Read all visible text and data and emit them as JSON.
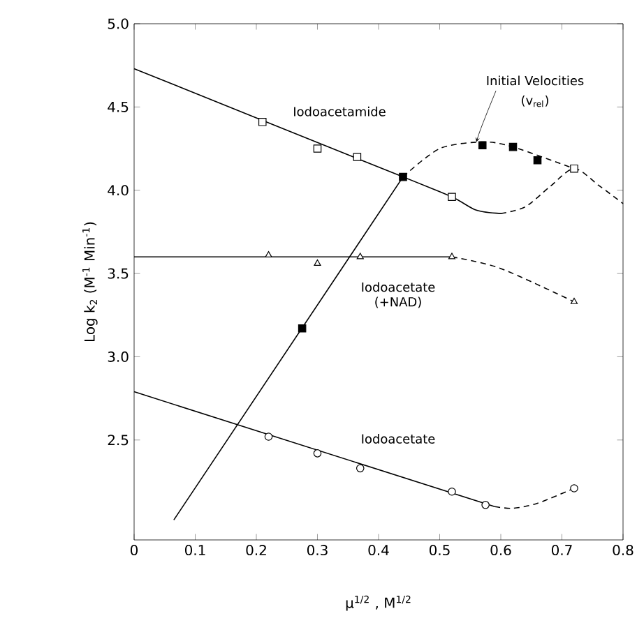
{
  "chart_data": {
    "type": "scatter",
    "xlabel": "μ$^{1/2}$ , M$^{1/2}$",
    "ylabel": "Log k$_{2}$ (M$^{-1}$ Min$^{-1}$)",
    "xlim": [
      0,
      0.8
    ],
    "ylim": [
      1.9,
      5.0
    ],
    "xticks": [
      {
        "value": 0,
        "label": "0"
      },
      0.1,
      0.2,
      0.3,
      0.4,
      0.5,
      0.6,
      0.7,
      0.8
    ],
    "yticks": [
      2.5,
      {
        "value": 3,
        "label": "3.0"
      },
      3.5,
      {
        "value": 4,
        "label": "4.0"
      },
      4.5,
      {
        "value": 5,
        "label": "5.0"
      }
    ],
    "grid": false,
    "series": [
      {
        "type": "line",
        "line_style": "solid",
        "marker": "none",
        "color": "#000000",
        "x": [
          0,
          0.44,
          0.52,
          0.56,
          0.6
        ],
        "values": [
          4.73,
          4.08,
          3.96,
          3.88,
          3.86
        ]
      },
      {
        "type": "line",
        "line_style": "dashed",
        "marker": "none",
        "color": "#000000",
        "x": [
          0.6,
          0.64,
          0.68,
          0.72,
          0.76,
          0.8
        ],
        "values": [
          3.86,
          3.9,
          4.02,
          4.13,
          4.03,
          3.92
        ]
      },
      {
        "type": "line",
        "line_style": "solid",
        "marker": "none",
        "color": "#000000",
        "x": [
          0.065,
          0.44
        ],
        "values": [
          2.02,
          4.08
        ]
      },
      {
        "type": "line",
        "line_style": "dashed",
        "marker": "none",
        "color": "#000000",
        "x": [
          0.44,
          0.5,
          0.57,
          0.62,
          0.72
        ],
        "values": [
          4.08,
          4.25,
          4.29,
          4.26,
          4.13
        ]
      },
      {
        "type": "line",
        "line_style": "solid",
        "marker": "none",
        "color": "#000000",
        "x": [
          0,
          0.52
        ],
        "values": [
          3.6,
          3.6
        ]
      },
      {
        "type": "line",
        "line_style": "dashed",
        "marker": "none",
        "color": "#000000",
        "x": [
          0.52,
          0.6,
          0.72
        ],
        "values": [
          3.6,
          3.53,
          3.33
        ]
      },
      {
        "type": "line",
        "line_style": "solid",
        "marker": "none",
        "color": "#000000",
        "x": [
          0,
          0.59
        ],
        "values": [
          2.79,
          2.1
        ]
      },
      {
        "type": "line",
        "line_style": "dashed",
        "marker": "none",
        "color": "#000000",
        "x": [
          0.59,
          0.62,
          0.66,
          0.72
        ],
        "values": [
          2.1,
          2.09,
          2.12,
          2.21
        ]
      },
      {
        "marker": "square",
        "color": "#ffffff",
        "x": [
          0.21,
          0.3,
          0.365,
          0.52,
          0.72
        ],
        "values": [
          4.41,
          4.25,
          4.2,
          3.96,
          4.13
        ]
      },
      {
        "marker": "square",
        "color": "#000000",
        "x": [
          0.275,
          0.44,
          0.57,
          0.62,
          0.66
        ],
        "values": [
          3.17,
          4.08,
          4.27,
          4.26,
          4.18
        ]
      },
      {
        "marker": "triangle",
        "color": "#ffffff",
        "x": [
          0.22,
          0.3,
          0.37,
          0.52,
          0.72
        ],
        "values": [
          3.61,
          3.56,
          3.6,
          3.6,
          3.33
        ]
      },
      {
        "marker": "circle",
        "color": "#ffffff",
        "x": [
          0.22,
          0.3,
          0.37,
          0.52,
          0.575,
          0.72
        ],
        "values": [
          2.52,
          2.42,
          2.33,
          2.19,
          2.11,
          2.21
        ]
      }
    ],
    "annotations": [
      "Iodoacetamide",
      {
        "text": "Initial Velocities",
        "x": 0.56,
        "y": 4.29
      },
      "(v$_{rel}$)",
      "Iodoacetate",
      "(+NAD)",
      "Iodoacetate"
    ]
  }
}
